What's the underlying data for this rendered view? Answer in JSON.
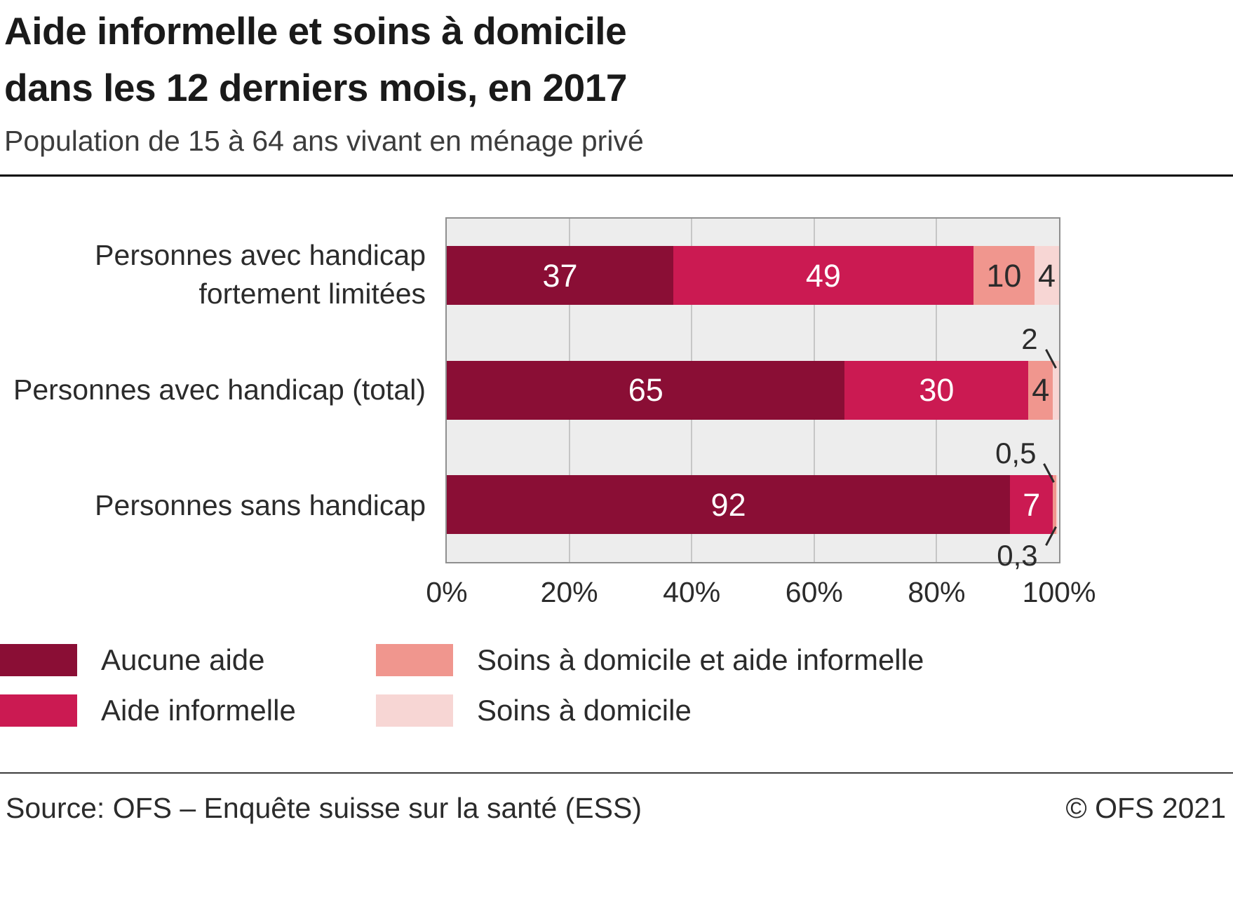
{
  "header": {
    "title_lines": [
      "Aide informelle et soins à domicile",
      "dans les 12 derniers mois, en 2017"
    ],
    "subtitle": "Population de 15 à 64 ans vivant en ménage privé"
  },
  "chart_data": {
    "type": "bar",
    "orientation": "horizontal",
    "stacked": true,
    "unit": "%",
    "xlim": [
      0,
      100
    ],
    "x_ticks": [
      "0%",
      "20%",
      "40%",
      "60%",
      "80%",
      "100%"
    ],
    "grid": true,
    "plot_background": "#ededed",
    "categories": [
      "Personnes avec handicap\nfortement limitées",
      "Personnes avec handicap (total)",
      "Personnes sans handicap"
    ],
    "series": [
      {
        "name": "Aucune aide",
        "color": "#8a0e35",
        "text_color": "#ffffff",
        "values": [
          37,
          65,
          92
        ],
        "value_labels": [
          "37",
          "65",
          "92"
        ]
      },
      {
        "name": "Aide informelle",
        "color": "#cb1a52",
        "text_color": "#ffffff",
        "values": [
          49,
          30,
          7
        ],
        "value_labels": [
          "49",
          "30",
          "7"
        ]
      },
      {
        "name": "Soins à domicile et aide informelle",
        "color": "#f0968e",
        "text_color": "#2b2b2b",
        "values": [
          10,
          4,
          0.5
        ],
        "value_labels": [
          "10",
          "4",
          "0,5"
        ]
      },
      {
        "name": "Soins à domicile",
        "color": "#f7d6d4",
        "text_color": "#2b2b2b",
        "values": [
          4,
          2,
          0.3
        ],
        "value_labels": [
          "4",
          "2",
          "0,3"
        ]
      }
    ],
    "legend_position": "bottom"
  },
  "footer": {
    "source": "Source: OFS – Enquête suisse sur la santé (ESS)",
    "copyright": "© OFS 2021"
  }
}
